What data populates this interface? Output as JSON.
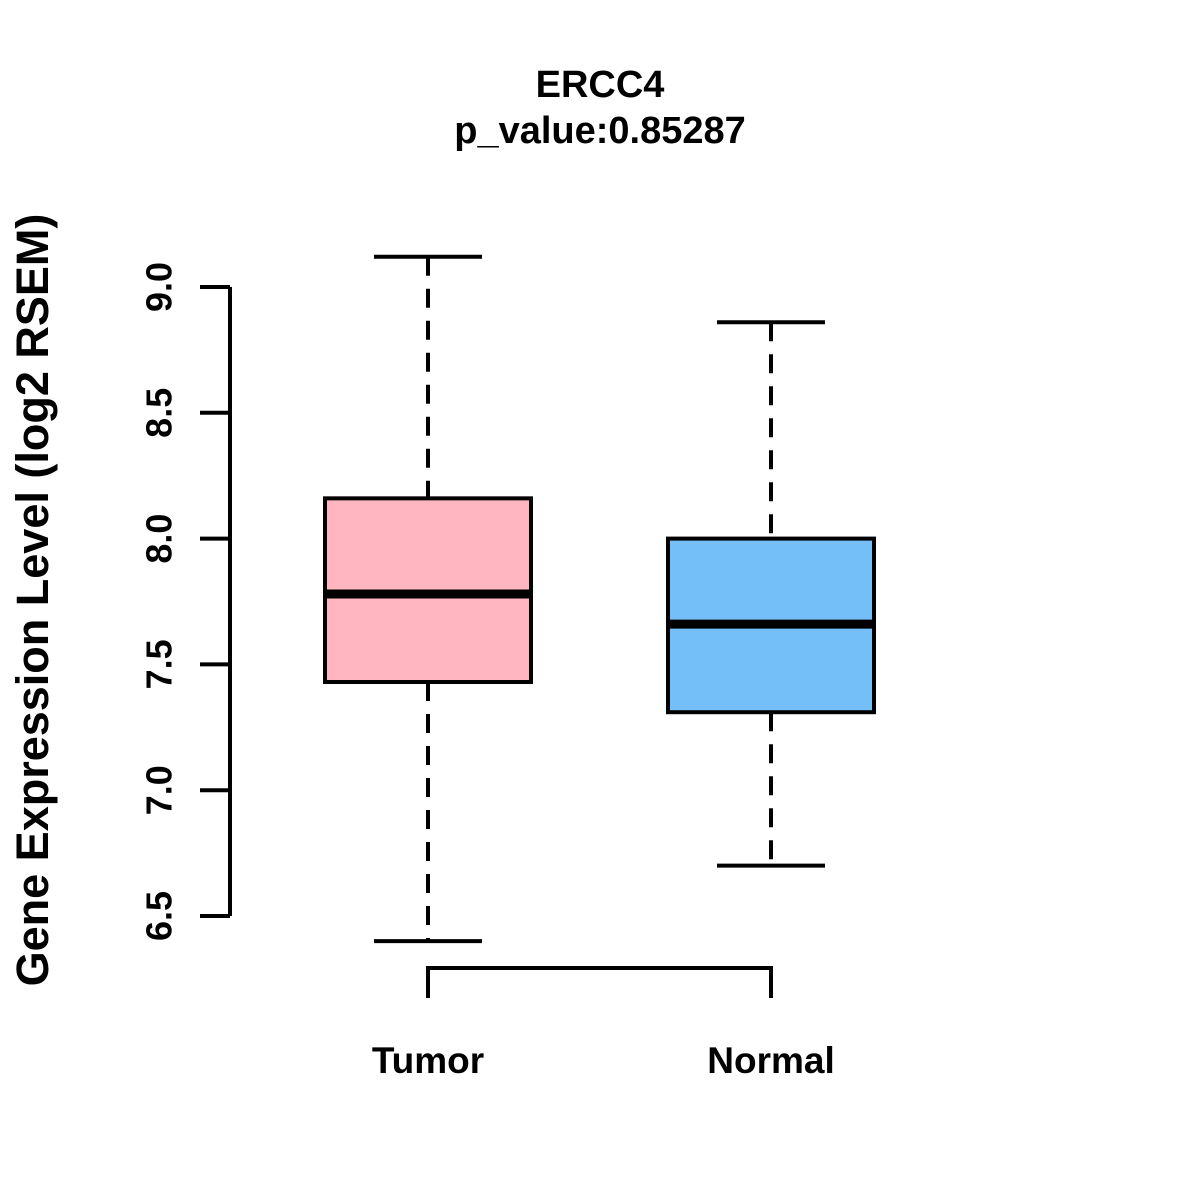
{
  "title": {
    "gene": "ERCC4",
    "p_value_line": "p_value:0.85287"
  },
  "chart_data": {
    "type": "boxplot",
    "title": "ERCC4",
    "subtitle": "p_value:0.85287",
    "p_value": "0.85287",
    "ylabel": "Gene Expression Level (log2 RSEM)",
    "ylim": [
      6.5,
      9.0
    ],
    "grid": false,
    "legend": "none",
    "y_ticks": [
      {
        "value": 6.5,
        "label": "6.5"
      },
      {
        "value": 7.0,
        "label": "7.0"
      },
      {
        "value": 7.5,
        "label": "7.5"
      },
      {
        "value": 8.0,
        "label": "8.0"
      },
      {
        "value": 8.5,
        "label": "8.5"
      },
      {
        "value": 9.0,
        "label": "9.0"
      }
    ],
    "groups": [
      {
        "label": "Tumor",
        "fill_color": "#FFB6C1",
        "min": 6.4,
        "q1": 7.43,
        "median": 7.78,
        "q3": 8.16,
        "max": 9.12
      },
      {
        "label": "Normal",
        "fill_color": "#74BFF7",
        "min": 6.7,
        "q1": 7.31,
        "median": 7.66,
        "q3": 8.0,
        "max": 8.86
      }
    ],
    "line_color": "#000000",
    "background_color": "#ffffff",
    "whisker_style": "dashed",
    "comparison_bracket": true
  }
}
